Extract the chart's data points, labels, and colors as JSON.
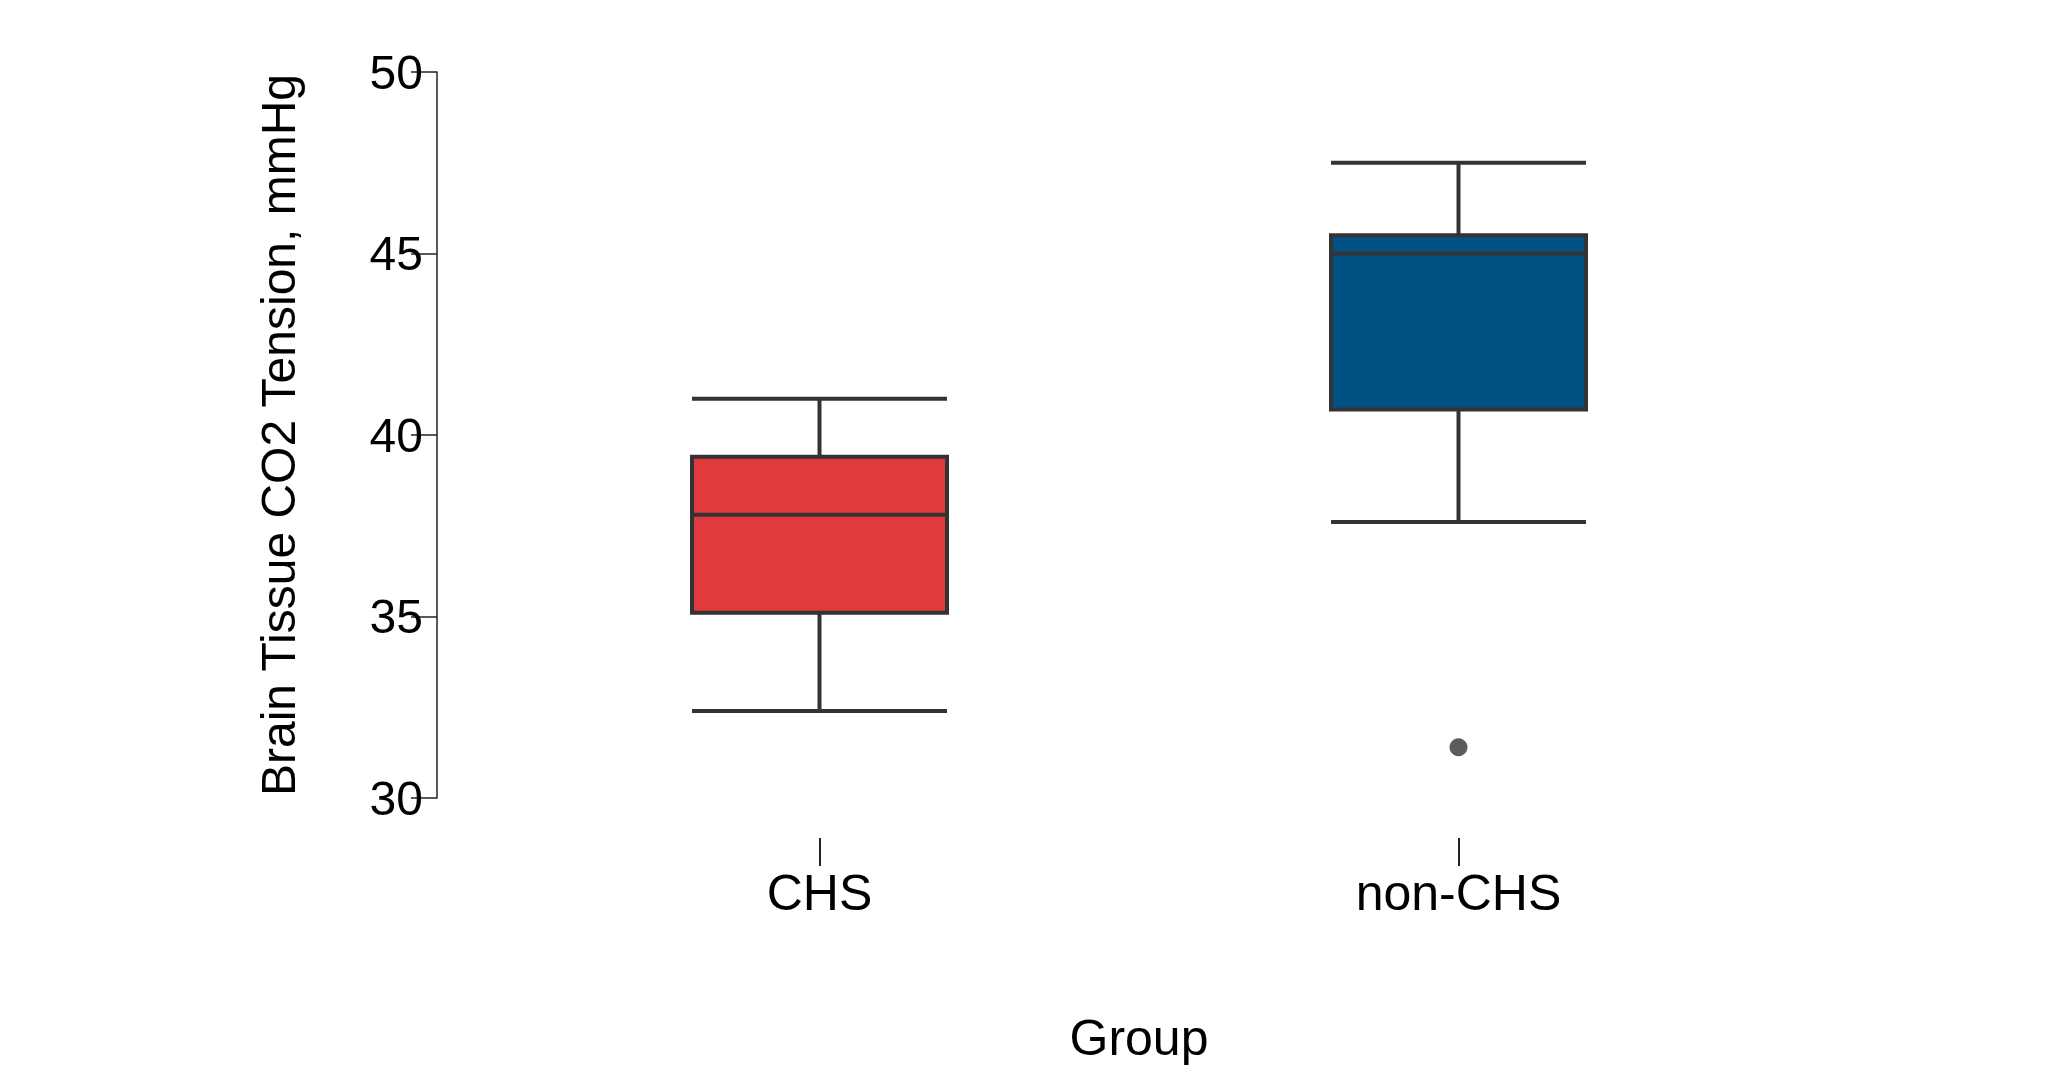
{
  "chart_data": {
    "type": "box",
    "xlabel": "Group",
    "ylabel": "Brain Tissue CO2 Tension, mmHg",
    "categories": [
      "CHS",
      "non-CHS"
    ],
    "colors": [
      "#e03a3e",
      "#005284"
    ],
    "boxes": [
      {
        "low": 32.4,
        "q1": 35.1,
        "median": 37.8,
        "q3": 39.4,
        "high": 41.0
      },
      {
        "low": 37.6,
        "q1": 40.7,
        "median": 45.0,
        "q3": 45.5,
        "high": 47.5,
        "outliers": [
          31.4
        ]
      }
    ],
    "ylim": [
      30,
      50
    ],
    "yticks": [
      30,
      35,
      40,
      45,
      50
    ]
  }
}
